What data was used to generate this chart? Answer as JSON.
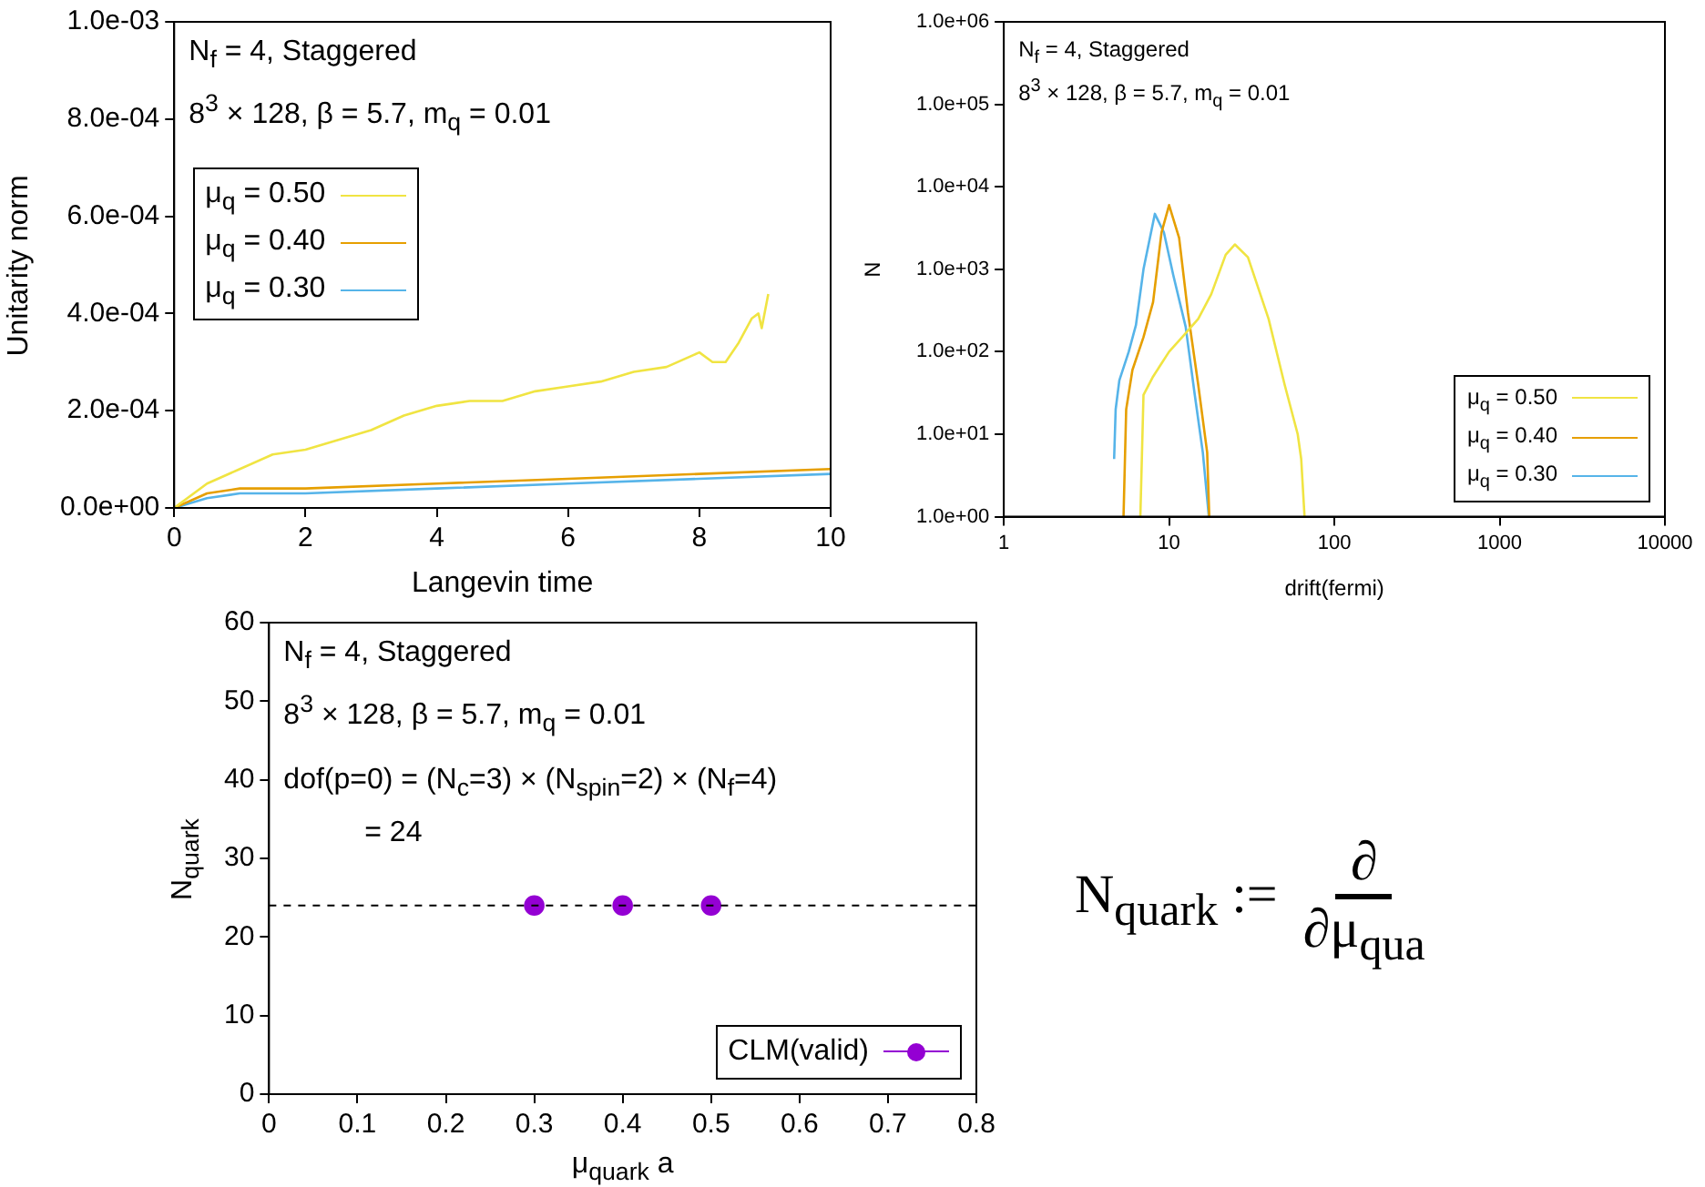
{
  "chart_data": [
    {
      "type": "line",
      "xlabel": "Langevin time",
      "ylabel": "Unitarity norm",
      "annotations": [
        "N$_{f}$ = 4, Staggered",
        "8$^{3}$ × 128, β = 5.7, m$_{q}$ = 0.01"
      ],
      "xlim": [
        0,
        10
      ],
      "xticks": [
        0,
        2,
        4,
        6,
        8,
        10
      ],
      "ylim": [
        0,
        0.001
      ],
      "yticks": [
        {
          "value": 0,
          "label": "0.0e+00"
        },
        {
          "value": 0.0002,
          "label": "2.0e-04"
        },
        {
          "value": 0.0004,
          "label": "4.0e-04"
        },
        {
          "value": 0.0006,
          "label": "6.0e-04"
        },
        {
          "value": 0.0008,
          "label": "8.0e-04"
        },
        {
          "value": 0.001,
          "label": "1.0e-03"
        }
      ],
      "legend": "top left",
      "marker": "none",
      "series": [
        {
          "name": "μ$_{q}$ = 0.50",
          "color": "#f0e442",
          "x": [
            0,
            0.5,
            1,
            1.5,
            2,
            2.5,
            3,
            3.5,
            4,
            4.5,
            5,
            5.5,
            6,
            6.5,
            7,
            7.5,
            8,
            8.2,
            8.4,
            8.6,
            8.8,
            8.9,
            8.95,
            9.05
          ],
          "values": [
            0,
            5e-05,
            8e-05,
            0.00011,
            0.00012,
            0.00014,
            0.00016,
            0.00019,
            0.00021,
            0.00022,
            0.00022,
            0.00024,
            0.00025,
            0.00026,
            0.00028,
            0.00029,
            0.00032,
            0.0003,
            0.0003,
            0.00034,
            0.00039,
            0.0004,
            0.00037,
            0.00044
          ]
        },
        {
          "name": "μ$_{q}$ = 0.40",
          "color": "#e69f00",
          "x": [
            0,
            0.5,
            1,
            2,
            4,
            6,
            8,
            10
          ],
          "values": [
            0,
            3e-05,
            4e-05,
            4e-05,
            5e-05,
            6e-05,
            7e-05,
            8e-05
          ]
        },
        {
          "name": "μ$_{q}$ = 0.30",
          "color": "#56b4e9",
          "x": [
            0,
            0.5,
            1,
            2,
            4,
            6,
            8,
            10
          ],
          "values": [
            0,
            2e-05,
            3e-05,
            3e-05,
            4e-05,
            5e-05,
            6e-05,
            7e-05
          ]
        }
      ]
    },
    {
      "type": "line",
      "xlabel": "drift(fermi)",
      "ylabel": "N",
      "log": "xy",
      "annotations": [
        "N$_{f}$ = 4, Staggered",
        "8$^{3}$ × 128, β = 5.7, m$_{q}$ = 0.01"
      ],
      "xlim": [
        1,
        10000
      ],
      "xticks": [
        1,
        10,
        100,
        1000,
        10000
      ],
      "ylim": [
        1,
        1000000
      ],
      "yticks": [
        {
          "value": 1,
          "label": "1.0e+00"
        },
        {
          "value": 10,
          "label": "1.0e+01"
        },
        {
          "value": 100,
          "label": "1.0e+02"
        },
        {
          "value": 1000,
          "label": "1.0e+03"
        },
        {
          "value": 10000,
          "label": "1.0e+04"
        },
        {
          "value": 100000,
          "label": "1.0e+05"
        },
        {
          "value": 1000000,
          "label": "1.0e+06"
        }
      ],
      "legend": "bottom right",
      "marker": "none",
      "series": [
        {
          "name": "μ$_{q}$ = 0.50",
          "color": "#f0e442",
          "x": [
            6.7,
            7,
            8,
            10,
            12,
            15,
            18,
            22,
            25,
            30,
            40,
            50,
            60,
            63,
            66
          ],
          "values": [
            1,
            30,
            50,
            100,
            150,
            250,
            500,
            1500,
            2000,
            1400,
            250,
            40,
            10,
            5,
            1
          ]
        },
        {
          "name": "μ$_{q}$ = 0.40",
          "color": "#e69f00",
          "x": [
            5.3,
            5.5,
            6,
            7,
            8,
            9,
            10,
            11.5,
            13,
            15,
            17,
            17.5
          ],
          "values": [
            1,
            20,
            60,
            150,
            400,
            2800,
            6000,
            2400,
            300,
            40,
            6,
            1
          ]
        },
        {
          "name": "μ$_{q}$ = 0.30",
          "color": "#56b4e9",
          "x": [
            4.65,
            4.75,
            5,
            5.7,
            6.3,
            7,
            8.2,
            9.3,
            10.6,
            12.6,
            14.3,
            16,
            17.4
          ],
          "values": [
            5,
            20,
            45,
            100,
            210,
            1000,
            4700,
            2800,
            850,
            200,
            30,
            6,
            1
          ]
        }
      ]
    },
    {
      "type": "scatter",
      "xlabel": "μ$_{quark}$ a",
      "ylabel": "N$_{quark}$",
      "annotations": [
        "N$_{f}$ = 4, Staggered",
        "8$^{3}$ × 128, β = 5.7, m$_{q}$ = 0.01",
        "dof(p=0) = (N$_{c}$=3) × (N$_{spin}$=2) × (N$_{f}$=4)",
        "          = 24"
      ],
      "x": [
        0.3,
        0.4,
        0.5
      ],
      "xlim": [
        0,
        0.8
      ],
      "xticks": [
        0,
        0.1,
        0.2,
        0.3,
        0.4,
        0.5,
        0.6,
        0.7,
        0.8
      ],
      "ylim": [
        0,
        60
      ],
      "yticks": [
        0,
        10,
        20,
        30,
        40,
        50,
        60
      ],
      "legend": "bottom right",
      "marker": "circle",
      "ref_lines": [
        {
          "axis": "y",
          "value": 24,
          "color": "#000000",
          "line_style": "dashed"
        }
      ],
      "series": [
        {
          "name": "CLM(valid)",
          "color": "#9400d3",
          "values": [
            24,
            24,
            24
          ]
        }
      ]
    },
    {
      "type": "other",
      "annotations": [
        "N$_{quark}$ :=",
        "∂",
        "∂μ$_{qua}$"
      ]
    }
  ]
}
